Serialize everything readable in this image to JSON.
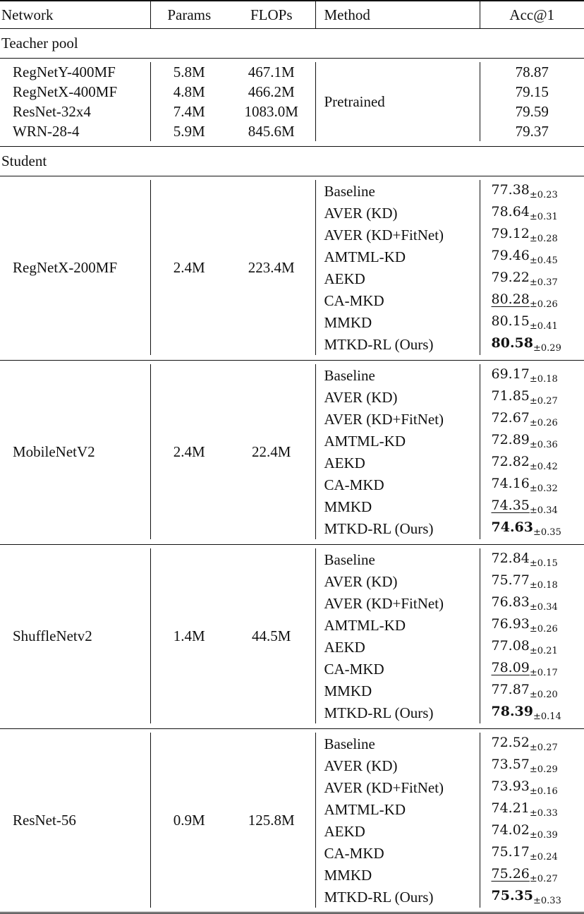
{
  "header": {
    "network": "Network",
    "params": "Params",
    "flops": "FLOPs",
    "method": "Method",
    "acc": "Acc@1"
  },
  "teacher": {
    "label": "Teacher pool",
    "method": "Pretrained",
    "rows": [
      {
        "network": "RegNetY-400MF",
        "params": "5.8M",
        "flops": "467.1M",
        "acc": "78.87"
      },
      {
        "network": "RegNetX-400MF",
        "params": "4.8M",
        "flops": "466.2M",
        "acc": "79.15"
      },
      {
        "network": "ResNet-32x4",
        "params": "7.4M",
        "flops": "1083.0M",
        "acc": "79.59"
      },
      {
        "network": "WRN-28-4",
        "params": "5.9M",
        "flops": "845.6M",
        "acc": "79.37"
      }
    ]
  },
  "student": {
    "label": "Student",
    "groups": [
      {
        "network": "RegNetX-200MF",
        "params": "2.4M",
        "flops": "223.4M",
        "results": [
          {
            "method": "Baseline",
            "acc": "77.38",
            "std": "±0.23",
            "style": ""
          },
          {
            "method": "AVER (KD)",
            "acc": "78.64",
            "std": "±0.31",
            "style": ""
          },
          {
            "method": "AVER (KD+FitNet)",
            "acc": "79.12",
            "std": "±0.28",
            "style": ""
          },
          {
            "method": "AMTML-KD",
            "acc": "79.46",
            "std": "±0.45",
            "style": ""
          },
          {
            "method": "AEKD",
            "acc": "79.22",
            "std": "±0.37",
            "style": ""
          },
          {
            "method": "CA-MKD",
            "acc": "80.28",
            "std": "±0.26",
            "style": "underline"
          },
          {
            "method": "MMKD",
            "acc": "80.15",
            "std": "±0.41",
            "style": ""
          },
          {
            "method": "MTKD-RL (Ours)",
            "acc": "80.58",
            "std": "±0.29",
            "style": "bold"
          }
        ]
      },
      {
        "network": "MobileNetV2",
        "params": "2.4M",
        "flops": "22.4M",
        "results": [
          {
            "method": "Baseline",
            "acc": "69.17",
            "std": "±0.18",
            "style": ""
          },
          {
            "method": "AVER (KD)",
            "acc": "71.85",
            "std": "±0.27",
            "style": ""
          },
          {
            "method": "AVER (KD+FitNet)",
            "acc": "72.67",
            "std": "±0.26",
            "style": ""
          },
          {
            "method": "AMTML-KD",
            "acc": "72.89",
            "std": "±0.36",
            "style": ""
          },
          {
            "method": "AEKD",
            "acc": "72.82",
            "std": "±0.42",
            "style": ""
          },
          {
            "method": "CA-MKD",
            "acc": "74.16",
            "std": "±0.32",
            "style": ""
          },
          {
            "method": "MMKD",
            "acc": "74.35",
            "std": "±0.34",
            "style": "underline"
          },
          {
            "method": "MTKD-RL (Ours)",
            "acc": "74.63",
            "std": "±0.35",
            "style": "bold"
          }
        ]
      },
      {
        "network": "ShuffleNetv2",
        "params": "1.4M",
        "flops": "44.5M",
        "results": [
          {
            "method": "Baseline",
            "acc": "72.84",
            "std": "±0.15",
            "style": ""
          },
          {
            "method": "AVER (KD)",
            "acc": "75.77",
            "std": "±0.18",
            "style": ""
          },
          {
            "method": "AVER (KD+FitNet)",
            "acc": "76.83",
            "std": "±0.34",
            "style": ""
          },
          {
            "method": "AMTML-KD",
            "acc": "76.93",
            "std": "±0.26",
            "style": ""
          },
          {
            "method": "AEKD",
            "acc": "77.08",
            "std": "±0.21",
            "style": ""
          },
          {
            "method": "CA-MKD",
            "acc": "78.09",
            "std": "±0.17",
            "style": "underline"
          },
          {
            "method": "MMKD",
            "acc": "77.87",
            "std": "±0.20",
            "style": ""
          },
          {
            "method": "MTKD-RL (Ours)",
            "acc": "78.39",
            "std": "±0.14",
            "style": "bold"
          }
        ]
      },
      {
        "network": "ResNet-56",
        "params": "0.9M",
        "flops": "125.8M",
        "results": [
          {
            "method": "Baseline",
            "acc": "72.52",
            "std": "±0.27",
            "style": ""
          },
          {
            "method": "AVER (KD)",
            "acc": "73.57",
            "std": "±0.29",
            "style": ""
          },
          {
            "method": "AVER (KD+FitNet)",
            "acc": "73.93",
            "std": "±0.16",
            "style": ""
          },
          {
            "method": "AMTML-KD",
            "acc": "74.21",
            "std": "±0.33",
            "style": ""
          },
          {
            "method": "AEKD",
            "acc": "74.02",
            "std": "±0.39",
            "style": ""
          },
          {
            "method": "CA-MKD",
            "acc": "75.17",
            "std": "±0.24",
            "style": ""
          },
          {
            "method": "MMKD",
            "acc": "75.26",
            "std": "±0.27",
            "style": "underline"
          },
          {
            "method": "MTKD-RL (Ours)",
            "acc": "75.35",
            "std": "±0.33",
            "style": "bold"
          }
        ]
      }
    ]
  }
}
